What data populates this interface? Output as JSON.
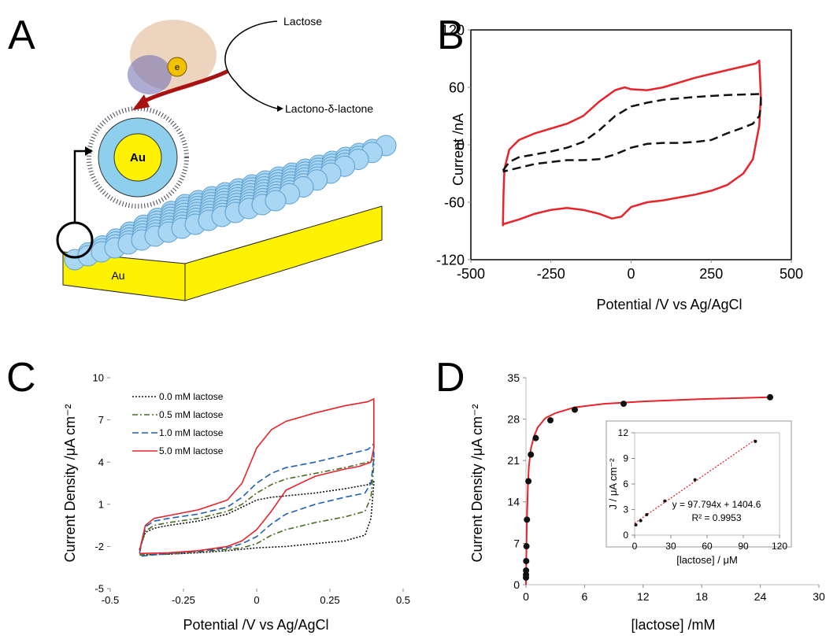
{
  "figure": {
    "panel_labels": [
      "A",
      "B",
      "C",
      "D"
    ],
    "diagram": {
      "substrate": "Lactose",
      "product": "Lactono-δ-lactone",
      "electron": "e",
      "nanoparticle": "Au",
      "electrode": "Au"
    }
  },
  "chart_data": [
    {
      "type": "line",
      "xlabel": "Potential /V vs Ag/AgCl",
      "ylabel": "Current /nA",
      "xlim": [
        -500,
        500
      ],
      "xticks": [
        -500,
        -250,
        0,
        250,
        500
      ],
      "ylim": [
        -120,
        120
      ],
      "yticks": [
        -120,
        -60,
        0,
        60,
        120
      ],
      "frame": true,
      "series": [
        {
          "color": "#e8232a",
          "line_style": "solid",
          "x": [
            -400,
            -398,
            -395,
            -380,
            -350,
            -300,
            -250,
            -200,
            -150,
            -100,
            -50,
            -20,
            0,
            50,
            100,
            200,
            300,
            390,
            400,
            405,
            400,
            380,
            350,
            300,
            250,
            200,
            150,
            100,
            50,
            0,
            -30,
            -60,
            -100,
            -150,
            -200,
            -250,
            -300,
            -350,
            -400
          ],
          "values": [
            -85,
            -50,
            -25,
            -5,
            5,
            12,
            17,
            22,
            30,
            45,
            57,
            60,
            58,
            57,
            60,
            70,
            78,
            85,
            88,
            50,
            20,
            -15,
            -30,
            -42,
            -48,
            -52,
            -55,
            -58,
            -60,
            -65,
            -75,
            -77,
            -72,
            -68,
            -66,
            -68,
            -72,
            -78,
            -83
          ]
        },
        {
          "color": "#111111",
          "line_style": "dashed",
          "x": [
            -400,
            -380,
            -350,
            -300,
            -250,
            -200,
            -150,
            -100,
            -50,
            0,
            50,
            100,
            200,
            300,
            400,
            405,
            405,
            400,
            380,
            350,
            300,
            250,
            200,
            150,
            100,
            50,
            0,
            -50,
            -100,
            -150,
            -200,
            -250,
            -300,
            -350,
            -400
          ],
          "values": [
            -27,
            -18,
            -13,
            -10,
            -7,
            -3,
            3,
            15,
            30,
            40,
            44,
            47,
            50,
            52,
            53,
            53,
            40,
            30,
            22,
            18,
            12,
            5,
            3,
            2,
            2,
            1,
            -3,
            -10,
            -15,
            -16,
            -16,
            -18,
            -20,
            -24,
            -28
          ]
        }
      ]
    },
    {
      "type": "line",
      "xlabel": "Potential /V vs Ag/AgCl",
      "ylabel": "Current Density  /μA cm⁻²",
      "xlim": [
        -0.5,
        0.5
      ],
      "xticks": [
        -0.5,
        -0.25,
        0,
        0.25,
        0.5
      ],
      "ylim": [
        -5,
        10
      ],
      "yticks": [
        -5,
        -2,
        1,
        4,
        7,
        10
      ],
      "legend": "upper left",
      "series": [
        {
          "name": "0.0 mM lactose",
          "color": "#111111",
          "line_style": "dotted",
          "x": [
            -0.4,
            -0.38,
            -0.35,
            -0.3,
            -0.2,
            -0.1,
            -0.05,
            0,
            0.05,
            0.1,
            0.2,
            0.3,
            0.38,
            0.4,
            0.4,
            0.39,
            0.37,
            0.3,
            0.2,
            0.1,
            0,
            -0.1,
            -0.2,
            -0.3,
            -0.4
          ],
          "values": [
            -2.2,
            -1.0,
            -0.7,
            -0.5,
            -0.2,
            0.3,
            0.8,
            1.3,
            1.5,
            1.6,
            1.8,
            2.1,
            2.4,
            2.7,
            2.5,
            0,
            -1.2,
            -1.6,
            -1.8,
            -2.0,
            -2.1,
            -2.3,
            -2.45,
            -2.55,
            -2.6
          ]
        },
        {
          "name": "0.5 mM lactose",
          "color": "#4a6b1f",
          "line_style": "dash-dot",
          "x": [
            -0.4,
            -0.38,
            -0.35,
            -0.3,
            -0.2,
            -0.1,
            -0.05,
            0,
            0.05,
            0.1,
            0.2,
            0.3,
            0.38,
            0.4,
            0.4,
            0.39,
            0.37,
            0.3,
            0.2,
            0.1,
            0.05,
            0,
            -0.05,
            -0.1,
            -0.2,
            -0.3,
            -0.4
          ],
          "values": [
            -2.3,
            -0.9,
            -0.5,
            -0.3,
            0,
            0.5,
            1.0,
            1.8,
            2.4,
            2.8,
            3.2,
            3.6,
            4,
            4.2,
            3.8,
            1.5,
            0.5,
            0.1,
            -0.3,
            -0.8,
            -1.2,
            -1.8,
            -2.1,
            -2.2,
            -2.4,
            -2.55,
            -2.6
          ]
        },
        {
          "name": "1.0 mM lactose",
          "color": "#1f5fb4",
          "line_style": "dashed",
          "x": [
            -0.4,
            -0.38,
            -0.35,
            -0.3,
            -0.2,
            -0.1,
            -0.05,
            0,
            0.05,
            0.1,
            0.2,
            0.3,
            0.38,
            0.4,
            0.4,
            0.39,
            0.37,
            0.3,
            0.2,
            0.1,
            0.05,
            0,
            -0.05,
            -0.1,
            -0.2,
            -0.3,
            -0.4
          ],
          "values": [
            -2.5,
            -0.6,
            -0.2,
            0,
            0.3,
            0.8,
            1.5,
            2.5,
            3.2,
            3.6,
            4,
            4.5,
            4.9,
            5.3,
            4.3,
            2.5,
            1.8,
            1.5,
            1.0,
            0.3,
            -0.4,
            -1.3,
            -1.8,
            -2.1,
            -2.35,
            -2.5,
            -2.7
          ]
        },
        {
          "name": "5.0 mM lactose",
          "color": "#e8232a",
          "line_style": "solid",
          "x": [
            -0.4,
            -0.38,
            -0.35,
            -0.3,
            -0.2,
            -0.1,
            -0.05,
            0,
            0.05,
            0.1,
            0.2,
            0.3,
            0.38,
            0.4,
            0.4,
            0.39,
            0.35,
            0.3,
            0.2,
            0.1,
            0.05,
            0,
            -0.05,
            -0.1,
            -0.2,
            -0.3,
            -0.4
          ],
          "values": [
            -2.3,
            -0.5,
            0,
            0.2,
            0.6,
            1.3,
            2.5,
            5,
            6.3,
            6.9,
            7.5,
            8,
            8.3,
            8.5,
            5,
            4,
            3.7,
            3.5,
            3,
            2.0,
            0.5,
            -0.8,
            -1.6,
            -2.0,
            -2.3,
            -2.45,
            -2.5
          ]
        }
      ]
    },
    {
      "type": "scatter",
      "xlabel": "[lactose] /mM",
      "ylabel": "Current Density  /μA cm⁻²",
      "xlim": [
        0,
        30
      ],
      "xticks": [
        0,
        6,
        12,
        18,
        24,
        30
      ],
      "ylim": [
        0,
        35
      ],
      "yticks": [
        0,
        7,
        14,
        21,
        28,
        35
      ],
      "axes": true,
      "series": [
        {
          "color": "#e8232a",
          "mode": "line",
          "x": [
            0,
            0.05,
            0.1,
            0.2,
            0.3,
            0.5,
            0.8,
            1.2,
            2,
            3,
            5,
            8,
            12,
            18,
            25
          ],
          "values": [
            0,
            6.5,
            11,
            17,
            20,
            23,
            25,
            26.6,
            28.2,
            29,
            30,
            30.6,
            31,
            31.4,
            31.7
          ]
        },
        {
          "color": "#111111",
          "mode": "markers",
          "x": [
            0.001,
            0.005,
            0.01,
            0.025,
            0.05,
            0.1,
            0.25,
            0.5,
            1,
            2.5,
            5,
            10,
            25
          ],
          "values": [
            1.2,
            1.7,
            2.4,
            4.0,
            6.5,
            11.0,
            17.5,
            22,
            24.8,
            27.8,
            29.6,
            30.6,
            31.7
          ]
        }
      ]
    },
    {
      "type": "scatter",
      "xlabel": "[lactose] / μM",
      "ylabel": "J / μA cm⁻²",
      "xlim": [
        0,
        120
      ],
      "xticks": [
        0,
        30,
        60,
        90,
        120
      ],
      "ylim": [
        0,
        12
      ],
      "yticks": [
        0,
        3,
        6,
        9,
        12
      ],
      "frame": true,
      "annotations": [
        "y = 97.794x + 1404.6",
        "R² = 0.9953"
      ],
      "series": [
        {
          "color": "#e8232a",
          "mode": "line",
          "line_style": "dotted",
          "x": [
            0,
            100
          ],
          "values": [
            1.4,
            11.2
          ]
        },
        {
          "color": "#111111",
          "mode": "markers",
          "x": [
            1,
            5,
            10,
            25,
            50,
            100
          ],
          "values": [
            1.2,
            1.7,
            2.4,
            4.0,
            6.5,
            11.0
          ]
        }
      ]
    }
  ]
}
